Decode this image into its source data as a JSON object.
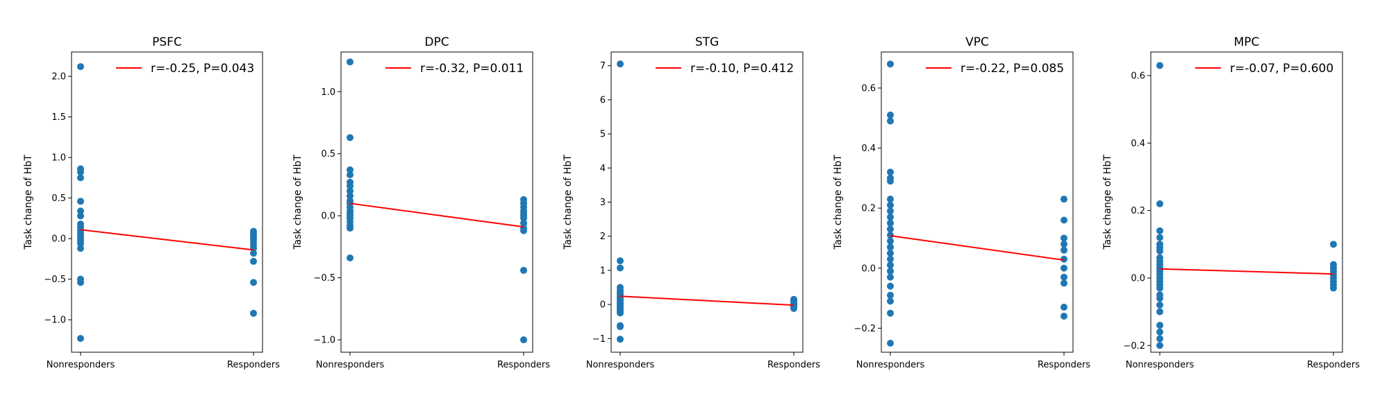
{
  "colors": {
    "points": "#1f77b4",
    "fit_line": "#ff0000",
    "axes": "#000000"
  },
  "chart_data": [
    {
      "type": "scatter",
      "title": "PSFC",
      "ylabel": "Task change of HbT",
      "x_categories": [
        "Nonresponders",
        "Responders"
      ],
      "yticks": [
        -1.0,
        -0.5,
        0.0,
        0.5,
        1.0,
        1.5,
        2.0
      ],
      "ytick_labels": [
        "−1.0",
        "−0.5",
        "0.0",
        "0.5",
        "1.0",
        "1.5",
        "2.0"
      ],
      "ylim": [
        -1.4,
        2.3
      ],
      "legend": "r=-0.25, P=0.043",
      "legend_position": "top-right",
      "fit": [
        0.11,
        -0.14
      ],
      "points": {
        "Nonresponders": [
          2.12,
          0.86,
          0.82,
          0.75,
          0.46,
          0.34,
          0.28,
          0.18,
          0.14,
          0.1,
          0.06,
          0.03,
          0.0,
          -0.03,
          -0.06,
          -0.12,
          -0.5,
          -0.54,
          -1.23
        ],
        "Responders": [
          0.09,
          0.06,
          0.03,
          0.0,
          -0.04,
          -0.08,
          -0.12,
          -0.18,
          -0.28,
          -0.54,
          -0.92
        ]
      }
    },
    {
      "type": "scatter",
      "title": "DPC",
      "ylabel": "Task change of HbT",
      "x_categories": [
        "Nonresponders",
        "Responders"
      ],
      "yticks": [
        -1.0,
        -0.5,
        0.0,
        0.5,
        1.0
      ],
      "ytick_labels": [
        "−1.0",
        "−0.5",
        "0.0",
        "0.5",
        "1.0"
      ],
      "ylim": [
        -1.1,
        1.32
      ],
      "legend": "r=-0.32, P=0.011",
      "legend_position": "top-right",
      "fit": [
        0.1,
        -0.09
      ],
      "points": {
        "Nonresponders": [
          1.24,
          0.63,
          0.37,
          0.33,
          0.27,
          0.24,
          0.2,
          0.16,
          0.12,
          0.1,
          0.07,
          0.04,
          0.02,
          0.0,
          -0.02,
          -0.05,
          -0.08,
          -0.1,
          -0.34
        ],
        "Responders": [
          0.13,
          0.1,
          0.07,
          0.04,
          0.02,
          0.0,
          -0.02,
          -0.06,
          -0.1,
          -0.12,
          -0.44,
          -1.0
        ]
      }
    },
    {
      "type": "scatter",
      "title": "STG",
      "ylabel": "Task change of HbT",
      "x_categories": [
        "Nonresponders",
        "Responders"
      ],
      "yticks": [
        -1,
        0,
        1,
        2,
        3,
        4,
        5,
        6,
        7
      ],
      "ytick_labels": [
        "−1",
        "0",
        "1",
        "2",
        "3",
        "4",
        "5",
        "6",
        "7"
      ],
      "ylim": [
        -1.4,
        7.4
      ],
      "legend": "r=-0.10, P=0.412",
      "legend_position": "top-right",
      "fit": [
        0.24,
        -0.02
      ],
      "points": {
        "Nonresponders": [
          7.05,
          1.28,
          1.07,
          0.5,
          0.42,
          0.35,
          0.3,
          0.25,
          0.2,
          0.15,
          0.1,
          0.05,
          0.0,
          -0.05,
          -0.1,
          -0.15,
          -0.2,
          -0.25,
          -0.62,
          -0.65,
          -1.02
        ],
        "Responders": [
          0.15,
          0.1,
          0.06,
          0.02,
          -0.02,
          -0.05,
          -0.08,
          -0.12
        ]
      }
    },
    {
      "type": "scatter",
      "title": "VPC",
      "ylabel": "Task change of HbT",
      "x_categories": [
        "Nonresponders",
        "Responders"
      ],
      "yticks": [
        -0.2,
        0.0,
        0.2,
        0.4,
        0.6
      ],
      "ytick_labels": [
        "−0.2",
        "0.0",
        "0.2",
        "0.4",
        "0.6"
      ],
      "ylim": [
        -0.28,
        0.72
      ],
      "legend": "r=-0.22, P=0.085",
      "legend_position": "top-right",
      "fit": [
        0.108,
        0.027
      ],
      "points": {
        "Nonresponders": [
          0.68,
          0.51,
          0.49,
          0.32,
          0.3,
          0.29,
          0.23,
          0.21,
          0.19,
          0.17,
          0.15,
          0.13,
          0.11,
          0.09,
          0.07,
          0.05,
          0.03,
          0.01,
          -0.01,
          -0.03,
          -0.06,
          -0.09,
          -0.11,
          -0.15,
          -0.25
        ],
        "Responders": [
          0.23,
          0.16,
          0.1,
          0.08,
          0.06,
          0.03,
          0.0,
          -0.03,
          -0.05,
          -0.13,
          -0.16
        ]
      }
    },
    {
      "type": "scatter",
      "title": "MPC",
      "ylabel": "Task change of HbT",
      "x_categories": [
        "Nonresponders",
        "Responders"
      ],
      "yticks": [
        -0.2,
        0.0,
        0.2,
        0.4,
        0.6
      ],
      "ytick_labels": [
        "−0.2",
        "0.0",
        "0.2",
        "0.4",
        "0.6"
      ],
      "ylim": [
        -0.22,
        0.67
      ],
      "legend": "r=-0.07, P=0.600",
      "legend_position": "top-right",
      "fit": [
        0.027,
        0.012
      ],
      "points": {
        "Nonresponders": [
          0.63,
          0.22,
          0.14,
          0.12,
          0.1,
          0.09,
          0.08,
          0.06,
          0.05,
          0.04,
          0.03,
          0.02,
          0.01,
          0.0,
          -0.01,
          -0.02,
          -0.03,
          -0.05,
          -0.06,
          -0.08,
          -0.1,
          -0.14,
          -0.16,
          -0.18,
          -0.2
        ],
        "Responders": [
          0.1,
          0.04,
          0.03,
          0.02,
          0.01,
          0.0,
          -0.01,
          -0.02,
          -0.03
        ]
      }
    }
  ]
}
